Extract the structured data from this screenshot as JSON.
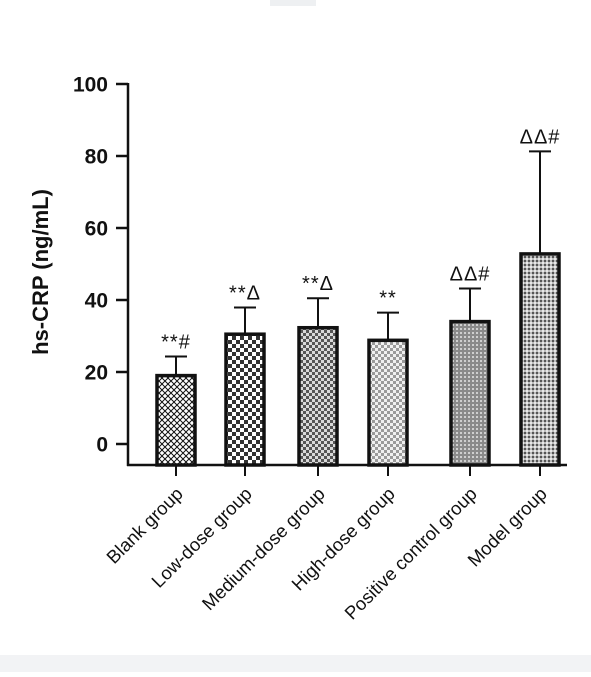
{
  "chart_data": {
    "type": "bar",
    "title": "",
    "xlabel": "",
    "ylabel": "hs-CRP (ng/mL)",
    "ylim": [
      0,
      100
    ],
    "yticks": [
      0,
      20,
      40,
      60,
      80,
      100
    ],
    "categories": [
      "Blank group",
      "Low-dose group",
      "Medium-dose group",
      "High-dose group",
      "Positive control group",
      "Model group"
    ],
    "values": [
      19,
      30.5,
      32.3,
      28.8,
      34,
      52.8
    ],
    "error": [
      5.3,
      7.4,
      8.2,
      7.7,
      9.2,
      28.5
    ],
    "annotations": [
      "**#",
      "**Δ",
      "**Δ",
      "**",
      "ΔΔ#",
      "ΔΔ#"
    ],
    "patterns": [
      "crosshatch",
      "checker-large",
      "checker-medium",
      "checker-light",
      "grid-dense",
      "grid-fine"
    ],
    "grid": false,
    "legend": "none",
    "colors": {
      "bar_stroke": "#111111",
      "axis": "#111111",
      "text": "#111111"
    }
  }
}
